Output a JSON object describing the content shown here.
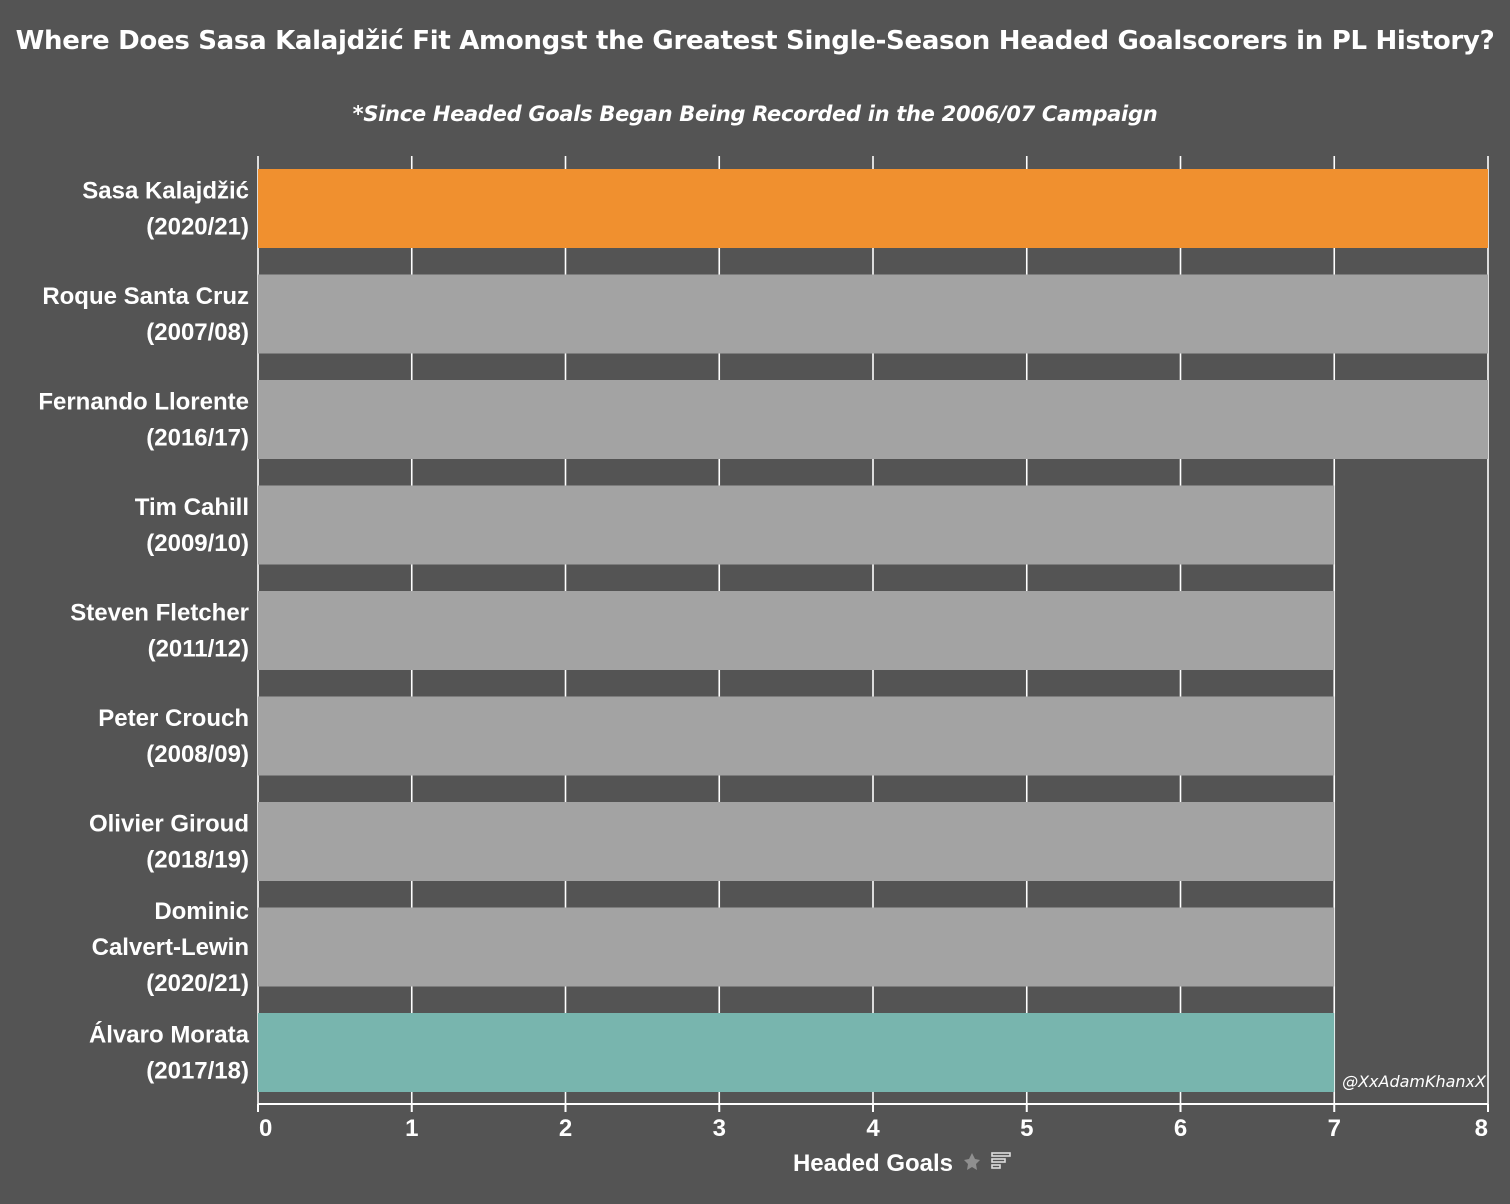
{
  "chart_data": {
    "type": "bar",
    "orientation": "horizontal",
    "title": "Where Does Sasa Kalajdžić Fit Amongst the Greatest Single-Season Headed Goalscorers in PL History?",
    "subtitle": "*Since Headed Goals Began Being Recorded in the 2006/07 Campaign",
    "xlabel": "Headed Goals",
    "xlim": [
      0,
      8
    ],
    "xticks": [
      "0",
      "1",
      "2",
      "3",
      "4",
      "5",
      "6",
      "7",
      "8"
    ],
    "grid": true,
    "credit": "@XxAdamKhanxX",
    "categories": [
      [
        "Sasa Kalajdžić",
        "(2020/21)"
      ],
      [
        "Roque Santa Cruz",
        "(2007/08)"
      ],
      [
        "Fernando Llorente",
        "(2016/17)"
      ],
      [
        "Tim Cahill",
        "(2009/10)"
      ],
      [
        "Steven Fletcher",
        "(2011/12)"
      ],
      [
        "Peter Crouch",
        "(2008/09)"
      ],
      [
        "Olivier Giroud",
        "(2018/19)"
      ],
      [
        "Dominic",
        "Calvert-Lewin",
        "(2020/21)"
      ],
      [
        "Álvaro Morata",
        "(2017/18)"
      ]
    ],
    "values": [
      8,
      8,
      8,
      7,
      7,
      7,
      7,
      7,
      7
    ],
    "colors": [
      "#f0902f",
      "#a3a3a3",
      "#a3a3a3",
      "#a3a3a3",
      "#a3a3a3",
      "#a3a3a3",
      "#a3a3a3",
      "#a3a3a3",
      "#78b5ae"
    ],
    "background": "#545454",
    "gridline_color": "#ffffff"
  }
}
